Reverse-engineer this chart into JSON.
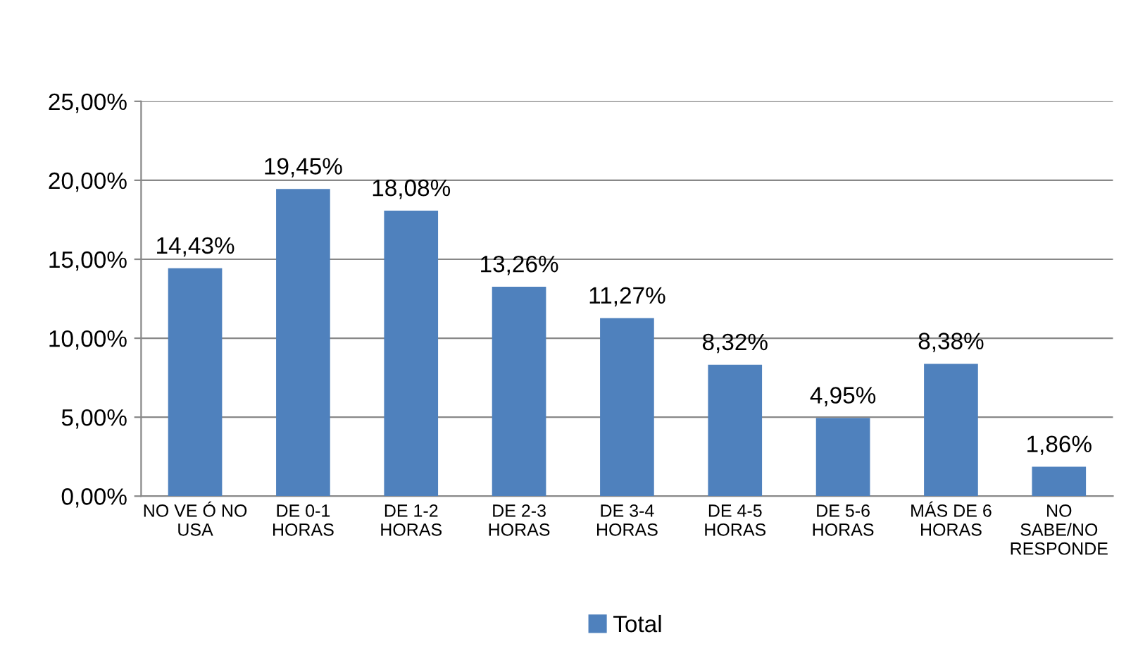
{
  "chart_data": {
    "type": "bar",
    "categories": [
      "NO VE Ó NO\nUSA",
      "DE 0-1\nHORAS",
      "DE 1-2\nHORAS",
      "DE 2-3\nHORAS",
      "DE 3-4\nHORAS",
      "DE 4-5\nHORAS",
      "DE 5-6\nHORAS",
      "MÁS DE 6\nHORAS",
      "NO\nSABE/NO\nRESPONDE"
    ],
    "series": [
      {
        "name": "Total",
        "color": "#4f81bd",
        "values": [
          14.43,
          19.45,
          18.08,
          13.26,
          11.27,
          8.32,
          4.95,
          8.38,
          1.86
        ],
        "value_labels": [
          "14,43%",
          "19,45%",
          "18,08%",
          "13,26%",
          "11,27%",
          "8,32%",
          "4,95%",
          "8,38%",
          "1,86%"
        ]
      }
    ],
    "ylim": [
      0,
      25
    ],
    "yticks": [
      {
        "value": 0,
        "label": "0,00%"
      },
      {
        "value": 5,
        "label": "5,00%"
      },
      {
        "value": 10,
        "label": "10,00%"
      },
      {
        "value": 15,
        "label": "15,00%"
      },
      {
        "value": 20,
        "label": "20,00%"
      },
      {
        "value": 25,
        "label": "25,00%"
      }
    ],
    "grid": "y",
    "legend": "bottom"
  }
}
